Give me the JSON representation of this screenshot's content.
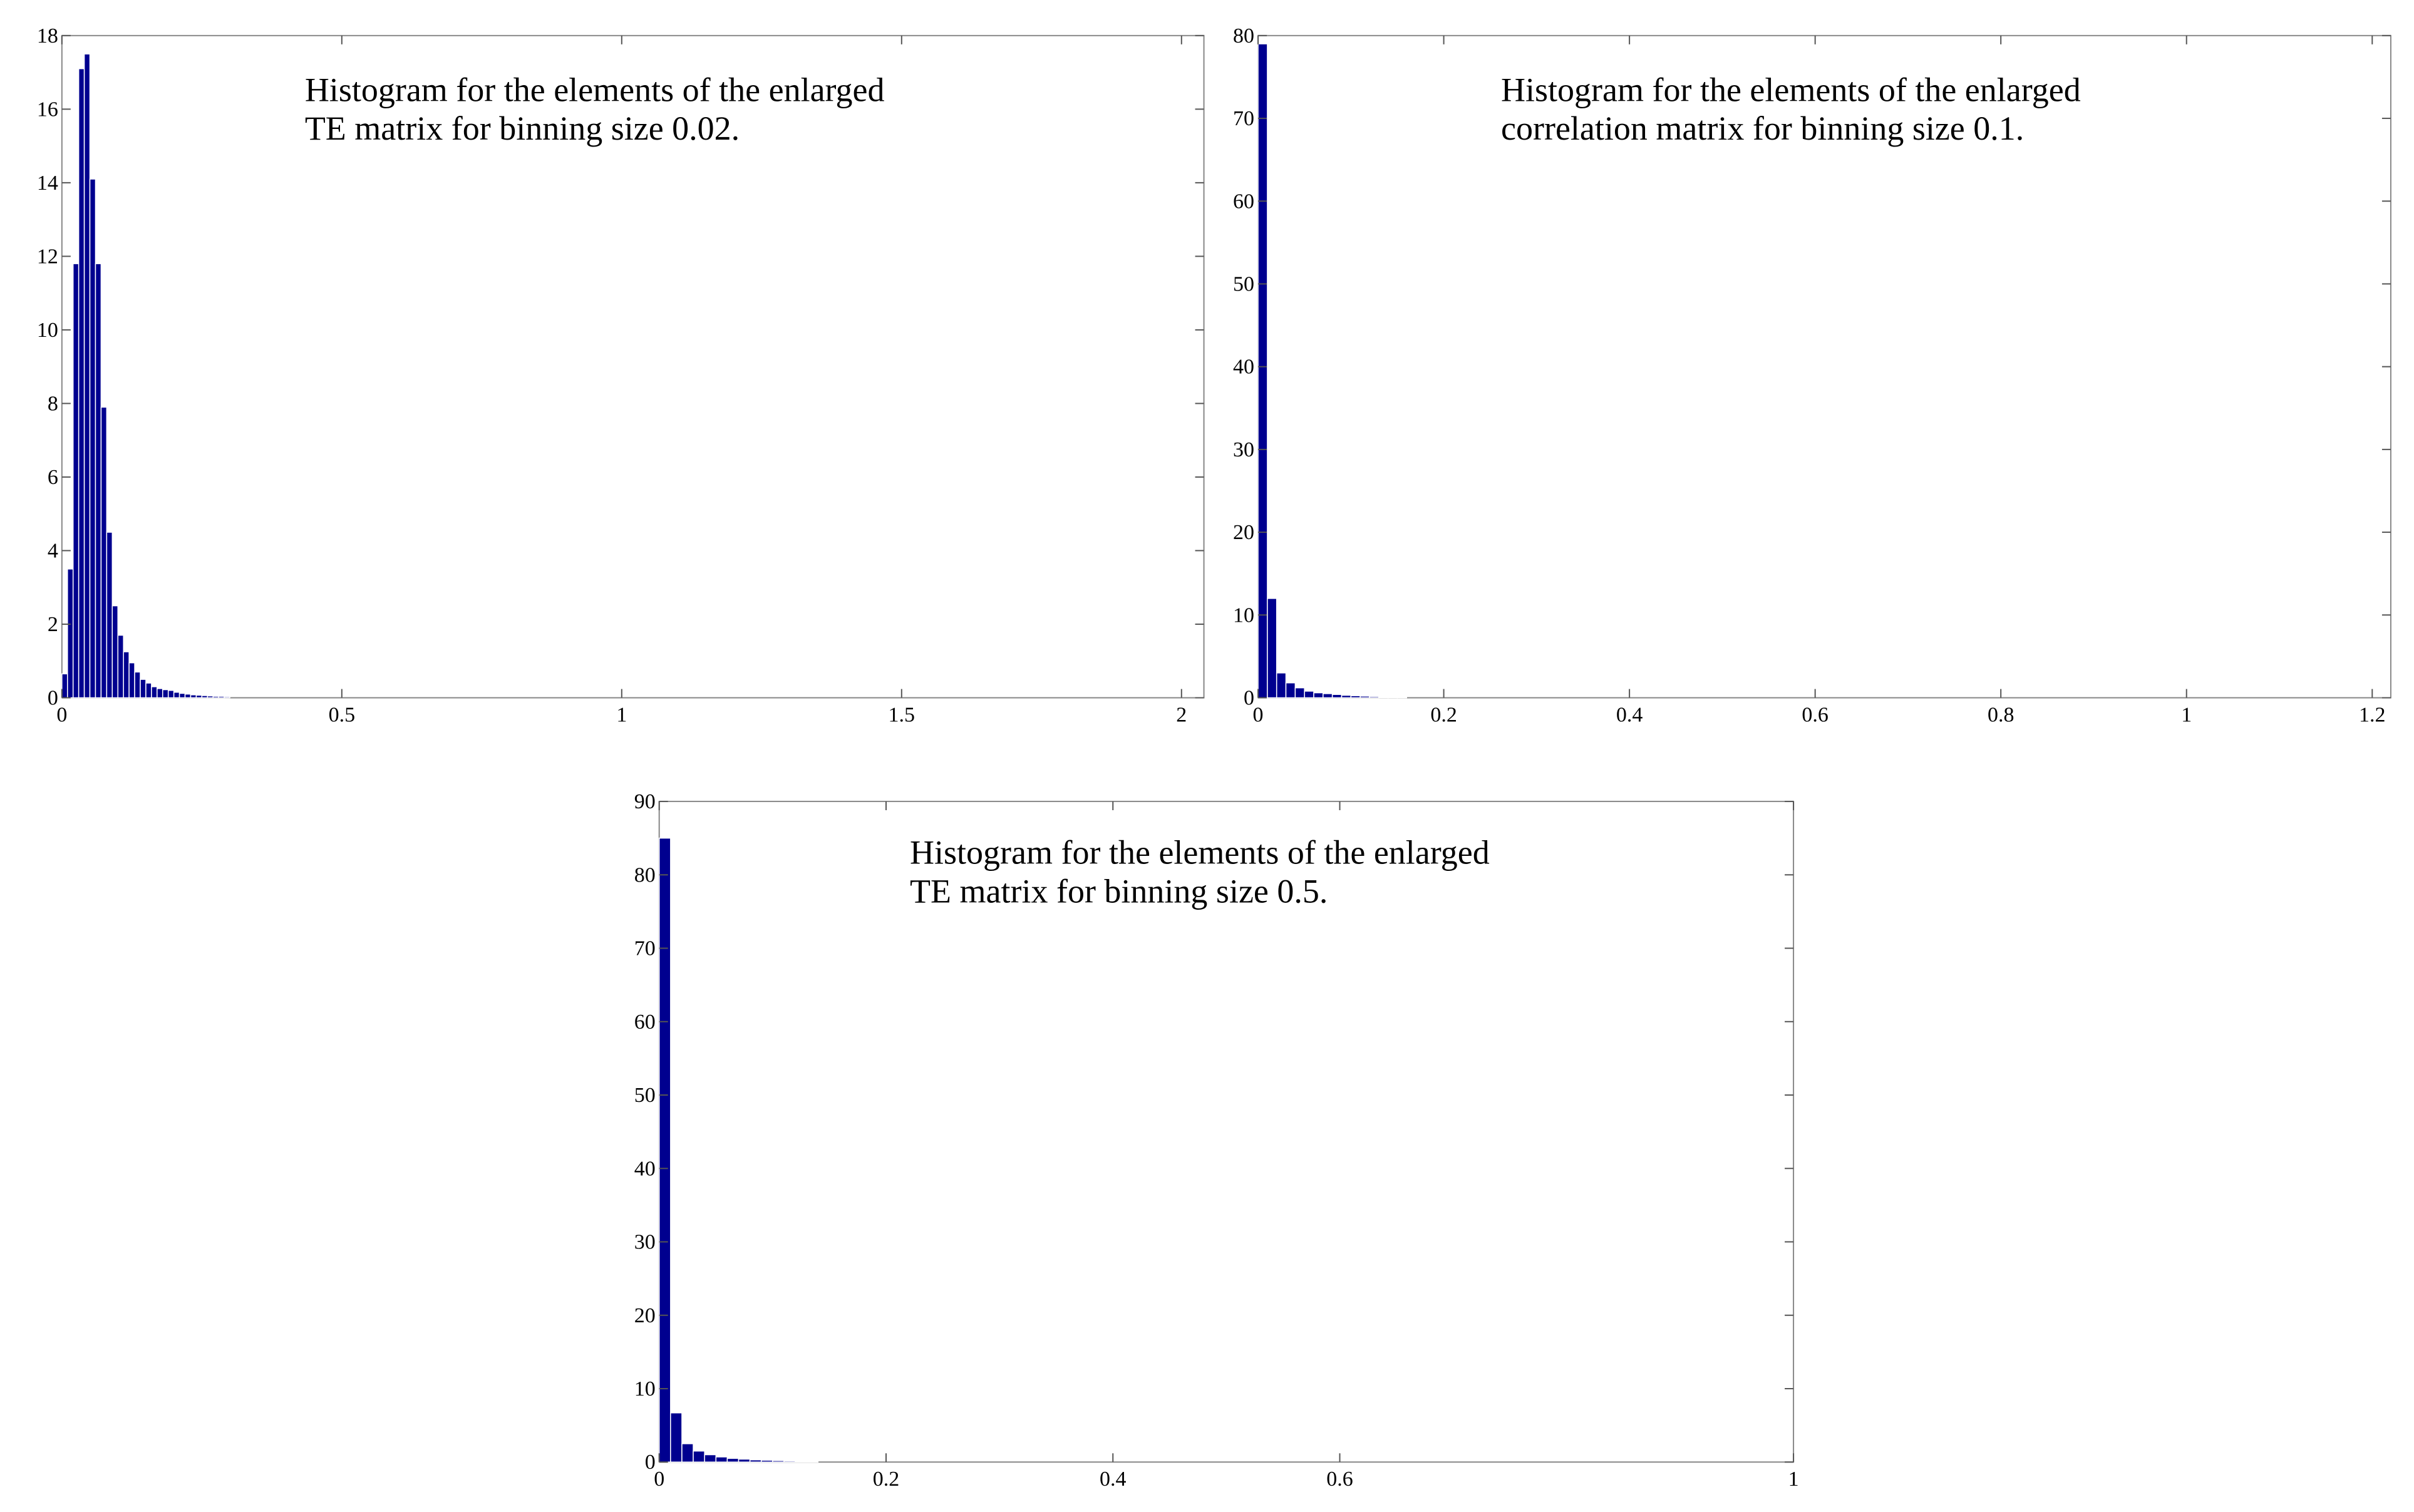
{
  "chart_data": [
    {
      "type": "histogram",
      "text": [
        "Histogram for the elements of the enlarged",
        "TE matrix for binning size 0.02."
      ],
      "bins": [
        0,
        0.01,
        0.02,
        0.03,
        0.04,
        0.05,
        0.06,
        0.07,
        0.08,
        0.09,
        0.1,
        0.11,
        0.12,
        0.13,
        0.14,
        0.15,
        0.16,
        0.17,
        0.18,
        0.19,
        0.2,
        0.21,
        0.22,
        0.23,
        0.24,
        0.25,
        0.26,
        0.27,
        0.28,
        0.29,
        0.3
      ],
      "values": [
        0.65,
        3.5,
        11.8,
        17.1,
        17.5,
        14.1,
        11.8,
        7.9,
        4.5,
        2.5,
        1.7,
        1.25,
        0.95,
        0.7,
        0.5,
        0.4,
        0.3,
        0.25,
        0.22,
        0.2,
        0.15,
        0.12,
        0.1,
        0.08,
        0.07,
        0.06,
        0.05,
        0.04,
        0.04,
        0.03
      ],
      "color": "#00008f",
      "xlim": [
        0,
        2.04
      ],
      "xticks": [
        0,
        0.5,
        1,
        1.5,
        2
      ],
      "ylim": [
        0,
        18
      ],
      "yticks": [
        0,
        2,
        4,
        6,
        8,
        10,
        12,
        14,
        16,
        18
      ]
    },
    {
      "type": "histogram",
      "text": [
        "Histogram for the elements of the enlarged",
        "correlation matrix for binning size 0.1."
      ],
      "bins": [
        0,
        0.01,
        0.02,
        0.03,
        0.04,
        0.05,
        0.06,
        0.07,
        0.08,
        0.09,
        0.1,
        0.11,
        0.12,
        0.13,
        0.14,
        0.15,
        0.16
      ],
      "values": [
        79,
        12,
        3,
        1.8,
        1.2,
        0.8,
        0.6,
        0.5,
        0.4,
        0.3,
        0.25,
        0.2,
        0.15,
        0.1,
        0.1,
        0.08
      ],
      "color": "#00008f",
      "xlim": [
        0,
        1.22
      ],
      "xticks": [
        0,
        0.2,
        0.4,
        0.6,
        0.8,
        1,
        1.2
      ],
      "ylim": [
        0,
        80
      ],
      "yticks": [
        0,
        10,
        20,
        30,
        40,
        50,
        60,
        70,
        80
      ]
    },
    {
      "type": "histogram",
      "text": [
        "Histogram for the elements of the enlarged",
        "TE matrix for binning size 0.5."
      ],
      "bins": [
        0,
        0.01,
        0.02,
        0.03,
        0.04,
        0.05,
        0.06,
        0.07,
        0.08,
        0.09,
        0.1,
        0.11,
        0.12,
        0.13,
        0.14
      ],
      "values": [
        85,
        6.7,
        2.5,
        1.5,
        1.0,
        0.7,
        0.5,
        0.4,
        0.3,
        0.25,
        0.2,
        0.15,
        0.1,
        0.1
      ],
      "color": "#00008f",
      "xlim": [
        0,
        1
      ],
      "xticks": [
        0,
        0.2,
        0.4,
        0.6,
        1
      ],
      "ylim": [
        0,
        90
      ],
      "yticks": [
        0,
        10,
        20,
        30,
        40,
        50,
        60,
        70,
        80,
        90
      ]
    }
  ]
}
